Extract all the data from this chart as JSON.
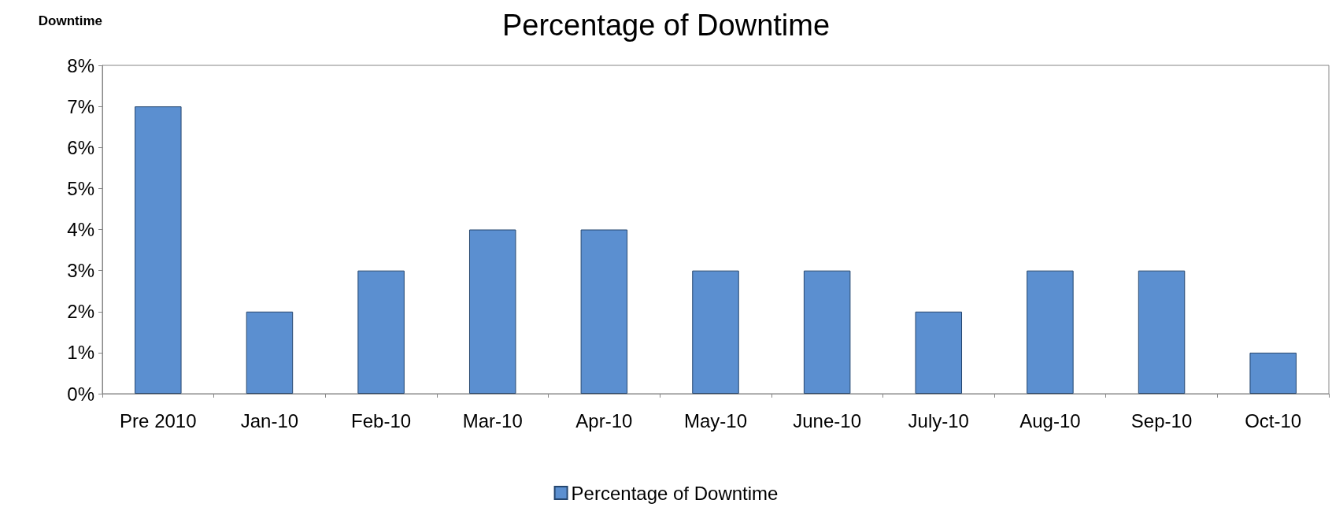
{
  "chart_data": {
    "type": "bar",
    "title": "Percentage of Downtime",
    "ylabel": "Downtime",
    "categories": [
      "Pre 2010",
      "Jan-10",
      "Feb-10",
      "Mar-10",
      "Apr-10",
      "May-10",
      "June-10",
      "July-10",
      "Aug-10",
      "Sep-10",
      "Oct-10"
    ],
    "series": [
      {
        "name": "Percentage of Downtime",
        "color": "#5b8fd0",
        "values": [
          7,
          2,
          3,
          4,
          4,
          3,
          3,
          2,
          3,
          3,
          1
        ]
      }
    ],
    "ylim": [
      0,
      8
    ],
    "yticks": [
      {
        "value": 0,
        "label": "0%"
      },
      {
        "value": 1,
        "label": "1%"
      },
      {
        "value": 2,
        "label": "2%"
      },
      {
        "value": 3,
        "label": "3%"
      },
      {
        "value": 4,
        "label": "4%"
      },
      {
        "value": 5,
        "label": "5%"
      },
      {
        "value": 6,
        "label": "6%"
      },
      {
        "value": 7,
        "label": "7%"
      },
      {
        "value": 8,
        "label": "8%"
      }
    ],
    "grid": false,
    "legend": "bottom"
  }
}
